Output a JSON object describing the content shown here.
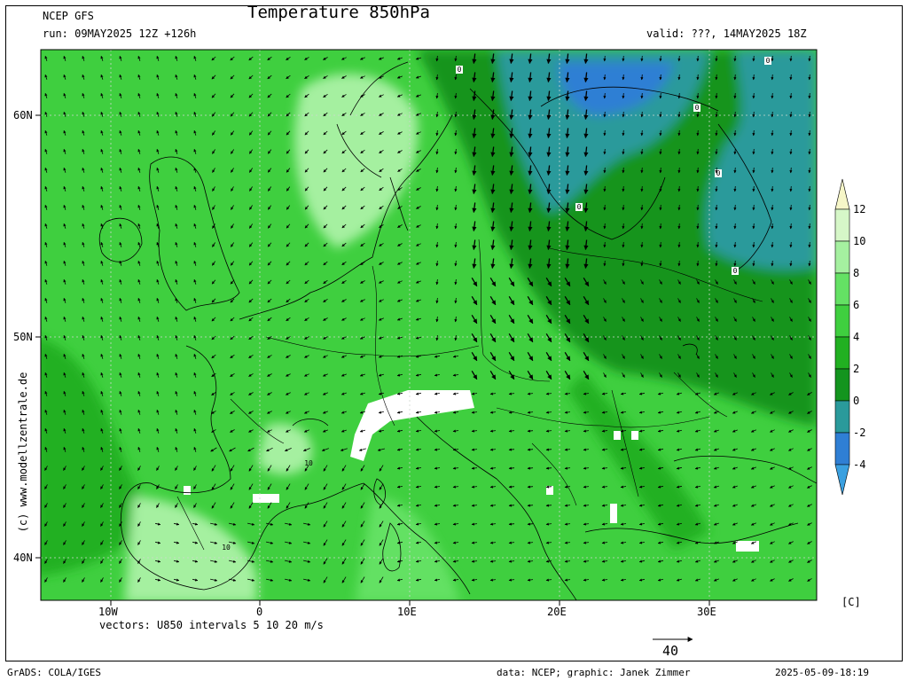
{
  "header": {
    "model": "NCEP GFS",
    "run": "run: 09MAY2025 12Z +126h",
    "title": "Temperature 850hPa",
    "valid": "valid: ???, 14MAY2025 18Z"
  },
  "side_text": "(c) www.modellzentrale.de",
  "lat_labels": [
    "60N",
    "50N",
    "40N"
  ],
  "lon_labels": [
    "10W",
    "0",
    "10E",
    "20E",
    "30E"
  ],
  "colorbar": {
    "ticks": [
      "12",
      "10",
      "8",
      "6",
      "4",
      "2",
      "0",
      "-2",
      "-4"
    ],
    "unit": "[C]",
    "colors": {
      "lt_12": "#f6f6c8",
      "10_12": "#d6f7c8",
      "8_10": "#a5f0a0",
      "6_8": "#64e164",
      "4_6": "#3fcf3f",
      "2_4": "#21b021",
      "0_2": "#13941e",
      "m2_0": "#2a9a9b",
      "m4_m2": "#2f7fd4",
      "lt_m4": "#3aa0e0"
    }
  },
  "contour_labels": [
    "0",
    "0",
    "0",
    "0",
    "0",
    "0",
    "10",
    "10"
  ],
  "vectors_label": "vectors: U850 intervals 5 10 20 m/s",
  "reference_vector": "40",
  "footer": {
    "left": "GrADS: COLA/IGES",
    "credit": "data: NCEP; graphic: Janek Zimmer",
    "timestamp": "2025-05-09-18:19"
  }
}
